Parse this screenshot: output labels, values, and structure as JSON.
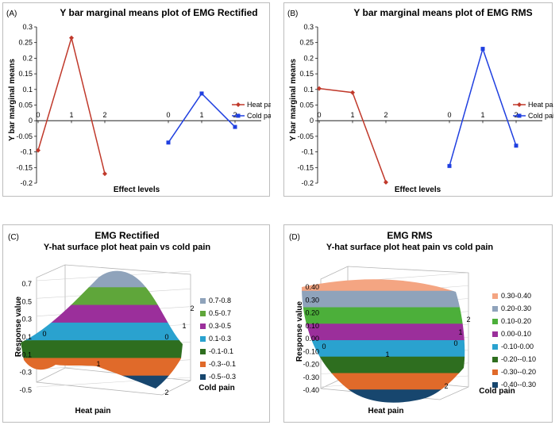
{
  "chart_data": [
    {
      "panel_label": "(A)",
      "type": "line",
      "title": "Y bar marginal means plot of EMG Rectified",
      "xlabel": "Effect levels",
      "ylabel": "Y bar marginal means",
      "ylim": [
        -0.2,
        0.3
      ],
      "yticks": [
        "0.3",
        "0.25",
        "0.2",
        "0.15",
        "0.1",
        "0.05",
        "0",
        "-0.05",
        "-0.1",
        "-0.15",
        "-0.2"
      ],
      "series": [
        {
          "name": "Heat pain",
          "color": "#c0392b",
          "marker": "diamond",
          "x": [
            "0",
            "1",
            "2"
          ],
          "values": [
            -0.095,
            0.265,
            -0.17
          ]
        },
        {
          "name": "Cold pain",
          "color": "#1f3fe0",
          "marker": "square",
          "x": [
            "0",
            "1",
            "2"
          ],
          "values": [
            -0.07,
            0.087,
            -0.02
          ]
        }
      ]
    },
    {
      "panel_label": "(B)",
      "type": "line",
      "title": "Y bar marginal means plot of EMG RMS",
      "xlabel": "Effect levels",
      "ylabel": "Y bar marginal means",
      "ylim": [
        -0.2,
        0.3
      ],
      "yticks": [
        "0.3",
        "0.25",
        "0.2",
        "0.15",
        "0.1",
        "0.05",
        "0",
        "-0.05",
        "-0.1",
        "-0.15",
        "-0.2"
      ],
      "series": [
        {
          "name": "Heat pain",
          "color": "#c0392b",
          "marker": "diamond",
          "x": [
            "0",
            "1",
            "2"
          ],
          "values": [
            0.103,
            0.09,
            -0.197
          ]
        },
        {
          "name": "Cold pain",
          "color": "#1f3fe0",
          "marker": "square",
          "x": [
            "0",
            "1",
            "2"
          ],
          "values": [
            -0.145,
            0.23,
            -0.08
          ]
        }
      ]
    },
    {
      "panel_label": "(C)",
      "type": "surface",
      "title": "EMG Rectified",
      "subtitle": "Y-hat surface plot heat pain vs cold pain",
      "zlabel": "Response value",
      "xlabel": "Heat pain",
      "ylabel": "Cold pain",
      "zticks": [
        "0.7",
        "0.5",
        "0.3",
        "0.1",
        "-0.1",
        "-0.3",
        "-0.5"
      ],
      "xticks": [
        "0",
        "1",
        "2"
      ],
      "yticks": [
        "0",
        "1",
        "2"
      ],
      "legend": [
        {
          "label": "0.7-0.8",
          "color": "#8fa3bb"
        },
        {
          "label": "0.5-0.7",
          "color": "#5fa63a"
        },
        {
          "label": "0.3-0.5",
          "color": "#9b2f9b"
        },
        {
          "label": "0.1-0.3",
          "color": "#2aa2cf"
        },
        {
          "label": "-0.1-0.1",
          "color": "#2e6e1f"
        },
        {
          "label": "-0.3--0.1",
          "color": "#e06a2a"
        },
        {
          "label": "-0.5--0.3",
          "color": "#17466e"
        }
      ]
    },
    {
      "panel_label": "(D)",
      "type": "surface",
      "title": "EMG RMS",
      "subtitle": "Y-hat surface plot heat pain vs cold pain",
      "zlabel": "Response value",
      "xlabel": "Heat pain",
      "ylabel": "Cold pain",
      "zticks": [
        "0.40",
        "0.30",
        "0.20",
        "0.10",
        "0.00",
        "-0.10",
        "-0.20",
        "-0.30",
        "-0.40"
      ],
      "xticks": [
        "0",
        "1",
        "2"
      ],
      "yticks": [
        "0",
        "1",
        "2"
      ],
      "legend": [
        {
          "label": "0.30-0.40",
          "color": "#f4a582"
        },
        {
          "label": "0.20-0.30",
          "color": "#8fa3bb"
        },
        {
          "label": "0.10-0.20",
          "color": "#4caf3a"
        },
        {
          "label": "0.00-0.10",
          "color": "#9b2f9b"
        },
        {
          "label": "-0.10-0.00",
          "color": "#2aa2cf"
        },
        {
          "label": "-0.20--0.10",
          "color": "#2e6e1f"
        },
        {
          "label": "-0.30--0.20",
          "color": "#e06a2a"
        },
        {
          "label": "-0.40--0.30",
          "color": "#17466e"
        }
      ]
    }
  ]
}
